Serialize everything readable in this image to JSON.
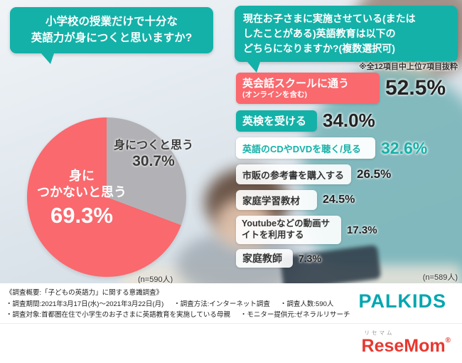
{
  "colors": {
    "teal": "#14b1a8",
    "red": "#f9696e",
    "pie_gray": "#b2b2b6",
    "dark": "#333333",
    "palkids_teal": "#00a6b0",
    "resemom_red": "#e73830"
  },
  "left_panel": {
    "bubble_lines": [
      "小学校の授業だけで十分な",
      "英語力が身につくと思いますか?"
    ],
    "pie_label_yes": "身につくと思う",
    "pie_label_yes_pct": "30.7%",
    "pie_label_no_lines": [
      "身に",
      "つかないと思う"
    ],
    "pie_label_no_pct": "69.3%",
    "n_label": "(n=590人)"
  },
  "right_panel": {
    "bubble_lines": [
      "現在お子さまに実施させている(または",
      "したことがある)英語教育は以下の",
      "どちらになりますか?(複数選択可)"
    ],
    "note": "※全12項目中上位7項目抜粋",
    "bars": [
      {
        "label": "英会話スクールに通う",
        "sub": "(オンラインを含む)",
        "pct": "52.5%"
      },
      {
        "label": "英検を受ける",
        "pct": "34.0%"
      },
      {
        "label": "英語のCDやDVDを聴く/見る",
        "pct": "32.6%"
      },
      {
        "label": "市販の参考書を購入する",
        "pct": "26.5%"
      },
      {
        "label": "家庭学習教材",
        "pct": "24.5%"
      },
      {
        "label": "Youtubeなどの動画サイトを利用する",
        "pct": "17.3%"
      },
      {
        "label": "家庭教師",
        "pct": "7.3%"
      }
    ],
    "n_label": "(n=589人)"
  },
  "footer": {
    "title": "《調査概要:「子どもの英語力」に関する意識調査》",
    "items": [
      "・調査期間:2021年3月17日(水)〜2021年3月22日(月)",
      "・調査方法:インターネット調査",
      "・調査人数:590人",
      "・調査対象:首都圏在住で小学生のお子さまに英語教育を実施している母親",
      "・モニター提供元:ゼネラルリサーチ"
    ],
    "palkids_logo": "PALKIDS"
  },
  "branding": {
    "resemom_kana": "リセマム",
    "resemom_logo": "ReseMom",
    "registered_mark": "®"
  },
  "chart_data": [
    {
      "type": "pie",
      "title": "小学校の授業だけで十分な英語力が身につくと思いますか?",
      "labels": [
        "身につくと思う",
        "身につかないと思う"
      ],
      "values": [
        30.7,
        69.3
      ],
      "colors": [
        "#b2b2b6",
        "#f9696e"
      ],
      "unit": "%",
      "sample_label": "(n=590人)",
      "start_angle": "12時方向から時計回り"
    },
    {
      "type": "bar",
      "title": "現在お子さまに実施させている(またはしたことがある)英語教育は以下のどちらになりますか?(複数選択可)",
      "note": "※全12項目中上位7項目抜粋",
      "categories": [
        "英会話スクールに通う(オンラインを含む)",
        "英検を受ける",
        "英語のCDやDVDを聴く/見る",
        "市販の参考書を購入する",
        "家庭学習教材",
        "Youtubeなどの動画サイトを利用する",
        "家庭教師"
      ],
      "values": [
        52.5,
        34.0,
        32.6,
        26.5,
        24.5,
        17.3,
        7.3
      ],
      "unit": "%",
      "orientation": "horizontal",
      "sample_label": "(n=589人)"
    }
  ]
}
